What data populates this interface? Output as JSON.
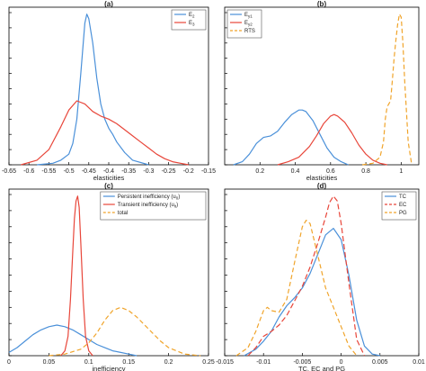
{
  "chart_data": [
    {
      "panel": "(a)",
      "type": "line",
      "xlabel": "elasticities",
      "xlim": [
        -0.65,
        -0.15
      ],
      "xticks": [
        -0.65,
        -0.6,
        -0.55,
        -0.5,
        -0.45,
        -0.4,
        -0.35,
        -0.3,
        -0.25,
        -0.2,
        -0.15
      ],
      "xtick_labels": [
        "-0.65",
        "-0.6",
        "-0.55",
        "-0.5",
        "-0.45",
        "-0.4",
        "-0.35",
        "-0.3",
        "-0.25",
        "-0.2",
        "-0.15"
      ],
      "ylim": [
        0,
        1
      ],
      "yticks": [
        0,
        0.1,
        0.2,
        0.3,
        0.4,
        0.5,
        0.6,
        0.7,
        0.8,
        0.9,
        1.0
      ],
      "legend_position": "top-right",
      "series": [
        {
          "name": "E",
          "sub": "2",
          "color": "#4a90d9",
          "dash": "",
          "x": [
            -0.58,
            -0.54,
            -0.52,
            -0.5,
            -0.49,
            -0.48,
            -0.47,
            -0.46,
            -0.455,
            -0.45,
            -0.44,
            -0.43,
            -0.42,
            -0.41,
            -0.4,
            -0.39,
            -0.38,
            -0.36,
            -0.34,
            -0.3
          ],
          "y": [
            0.0,
            0.01,
            0.03,
            0.07,
            0.14,
            0.3,
            0.6,
            0.93,
            0.99,
            0.96,
            0.8,
            0.57,
            0.4,
            0.3,
            0.24,
            0.2,
            0.15,
            0.08,
            0.03,
            0.0
          ]
        },
        {
          "name": "E",
          "sub": "3",
          "color": "#e8463a",
          "dash": "",
          "x": [
            -0.62,
            -0.58,
            -0.55,
            -0.52,
            -0.5,
            -0.48,
            -0.46,
            -0.44,
            -0.42,
            -0.4,
            -0.38,
            -0.36,
            -0.34,
            -0.32,
            -0.3,
            -0.28,
            -0.26,
            -0.24,
            -0.22,
            -0.2
          ],
          "y": [
            0.0,
            0.03,
            0.1,
            0.25,
            0.36,
            0.42,
            0.4,
            0.35,
            0.32,
            0.3,
            0.27,
            0.23,
            0.19,
            0.15,
            0.11,
            0.07,
            0.04,
            0.02,
            0.01,
            0.0
          ]
        }
      ]
    },
    {
      "panel": "(b)",
      "type": "line",
      "xlabel": "elasticities",
      "xlim": [
        0,
        1.1
      ],
      "xticks": [
        0.2,
        0.4,
        0.6,
        0.8,
        1.0
      ],
      "xtick_labels": [
        "0.2",
        "0.4",
        "0.6",
        "0.8",
        "1"
      ],
      "ylim": [
        0,
        1
      ],
      "yticks": [
        0,
        0.1,
        0.2,
        0.3,
        0.4,
        0.5,
        0.6,
        0.7,
        0.8,
        0.9,
        1.0
      ],
      "legend_position": "top-left",
      "series": [
        {
          "name": "E",
          "sub": "y1",
          "color": "#4a90d9",
          "dash": "",
          "x": [
            0.05,
            0.1,
            0.14,
            0.18,
            0.22,
            0.26,
            0.3,
            0.34,
            0.38,
            0.42,
            0.44,
            0.46,
            0.5,
            0.54,
            0.58,
            0.62,
            0.66,
            0.7
          ],
          "y": [
            0.0,
            0.02,
            0.07,
            0.14,
            0.18,
            0.19,
            0.22,
            0.28,
            0.33,
            0.36,
            0.36,
            0.35,
            0.29,
            0.2,
            0.11,
            0.05,
            0.02,
            0.0
          ]
        },
        {
          "name": "E",
          "sub": "y2",
          "color": "#e8463a",
          "dash": "",
          "x": [
            0.3,
            0.36,
            0.42,
            0.48,
            0.52,
            0.56,
            0.6,
            0.62,
            0.64,
            0.68,
            0.72,
            0.76,
            0.8,
            0.84,
            0.88,
            0.92
          ],
          "y": [
            0.0,
            0.02,
            0.05,
            0.12,
            0.19,
            0.27,
            0.32,
            0.33,
            0.32,
            0.28,
            0.21,
            0.13,
            0.07,
            0.03,
            0.01,
            0.0
          ]
        },
        {
          "name": "RTS",
          "sub": "",
          "color": "#f0a42a",
          "dash": "5,3",
          "x": [
            0.78,
            0.84,
            0.88,
            0.9,
            0.91,
            0.92,
            0.93,
            0.94,
            0.95,
            0.96,
            0.97,
            0.98,
            0.99,
            1.0,
            1.01,
            1.02,
            1.04,
            1.06
          ],
          "y": [
            0.0,
            0.01,
            0.05,
            0.15,
            0.3,
            0.38,
            0.4,
            0.42,
            0.55,
            0.7,
            0.82,
            0.92,
            0.99,
            0.97,
            0.8,
            0.55,
            0.15,
            0.0
          ]
        }
      ]
    },
    {
      "panel": "(c)",
      "type": "line",
      "xlabel": "inefficiency",
      "xlim": [
        0,
        0.25
      ],
      "xticks": [
        0,
        0.05,
        0.1,
        0.15,
        0.2,
        0.25
      ],
      "xtick_labels": [
        "0",
        "0.05",
        "0.1",
        "0.15",
        "0.2",
        "0.25"
      ],
      "ylim": [
        0,
        1
      ],
      "yticks": [
        0,
        0.1,
        0.2,
        0.3,
        0.4,
        0.5,
        0.6,
        0.7,
        0.8,
        0.9,
        1.0
      ],
      "legend_position": "top-right",
      "series": [
        {
          "name": "Persistent inefficiency (u",
          "sub": "0",
          "tail": ")",
          "color": "#4a90d9",
          "dash": "",
          "x": [
            0.0,
            0.01,
            0.02,
            0.03,
            0.04,
            0.05,
            0.06,
            0.07,
            0.08,
            0.09,
            0.1,
            0.11,
            0.12,
            0.13,
            0.14,
            0.15,
            0.16
          ],
          "y": [
            0.02,
            0.05,
            0.09,
            0.13,
            0.16,
            0.18,
            0.19,
            0.18,
            0.16,
            0.13,
            0.1,
            0.07,
            0.05,
            0.03,
            0.02,
            0.01,
            0.0
          ]
        },
        {
          "name": "Transient inefficiency (u",
          "sub": "it",
          "tail": ")",
          "color": "#e8463a",
          "dash": "",
          "x": [
            0.065,
            0.07,
            0.074,
            0.077,
            0.08,
            0.082,
            0.084,
            0.086,
            0.088,
            0.09,
            0.093,
            0.096,
            0.1,
            0.105
          ],
          "y": [
            0.0,
            0.03,
            0.12,
            0.35,
            0.65,
            0.85,
            0.96,
            0.99,
            0.92,
            0.7,
            0.35,
            0.12,
            0.03,
            0.0
          ]
        },
        {
          "name": "total",
          "sub": "",
          "tail": "",
          "color": "#f0a42a",
          "dash": "5,3",
          "x": [
            0.05,
            0.07,
            0.09,
            0.1,
            0.11,
            0.12,
            0.13,
            0.14,
            0.15,
            0.16,
            0.17,
            0.18,
            0.19,
            0.2,
            0.22,
            0.24
          ],
          "y": [
            0.0,
            0.01,
            0.04,
            0.08,
            0.14,
            0.22,
            0.28,
            0.3,
            0.28,
            0.24,
            0.19,
            0.14,
            0.09,
            0.05,
            0.01,
            0.0
          ]
        }
      ]
    },
    {
      "panel": "(d)",
      "type": "line",
      "xlabel": "TC, EC and PG",
      "xlim": [
        -0.015,
        0.01
      ],
      "xticks": [
        -0.015,
        -0.01,
        -0.005,
        0,
        0.005,
        0.01
      ],
      "xtick_labels": [
        "-0.015",
        "-0.01",
        "-0.005",
        "0",
        "0.005",
        "0.01"
      ],
      "ylim": [
        0,
        1
      ],
      "yticks": [
        0,
        0.1,
        0.2,
        0.3,
        0.4,
        0.5,
        0.6,
        0.7,
        0.8,
        0.9,
        1.0
      ],
      "legend_position": "top-right",
      "series": [
        {
          "name": "TC",
          "sub": "",
          "color": "#4a90d9",
          "dash": "",
          "x": [
            -0.0125,
            -0.011,
            -0.01,
            -0.009,
            -0.008,
            -0.007,
            -0.006,
            -0.005,
            -0.004,
            -0.003,
            -0.002,
            -0.001,
            0.0,
            0.001,
            0.002,
            0.003,
            0.004,
            0.005
          ],
          "y": [
            0.0,
            0.04,
            0.09,
            0.15,
            0.24,
            0.31,
            0.36,
            0.42,
            0.51,
            0.63,
            0.75,
            0.79,
            0.72,
            0.5,
            0.22,
            0.06,
            0.01,
            0.0
          ]
        },
        {
          "name": "EC",
          "sub": "",
          "color": "#e8463a",
          "dash": "6,3",
          "x": [
            -0.012,
            -0.011,
            -0.01,
            -0.009,
            -0.008,
            -0.007,
            -0.006,
            -0.005,
            -0.004,
            -0.003,
            -0.002,
            -0.0015,
            -0.001,
            -0.0005,
            0.0,
            0.001,
            0.002,
            0.003
          ],
          "y": [
            0.0,
            0.05,
            0.12,
            0.15,
            0.19,
            0.25,
            0.34,
            0.43,
            0.55,
            0.7,
            0.86,
            0.95,
            0.99,
            0.96,
            0.82,
            0.45,
            0.1,
            0.0
          ]
        },
        {
          "name": "PG",
          "sub": "",
          "color": "#f0a42a",
          "dash": "5,3",
          "x": [
            -0.0135,
            -0.012,
            -0.011,
            -0.01,
            -0.0095,
            -0.009,
            -0.008,
            -0.007,
            -0.006,
            -0.005,
            -0.0045,
            -0.004,
            -0.003,
            -0.002,
            -0.001,
            0.0,
            0.001,
            0.002
          ],
          "y": [
            0.0,
            0.05,
            0.15,
            0.28,
            0.3,
            0.28,
            0.27,
            0.35,
            0.58,
            0.8,
            0.84,
            0.82,
            0.62,
            0.42,
            0.3,
            0.18,
            0.06,
            0.0
          ]
        }
      ]
    }
  ]
}
